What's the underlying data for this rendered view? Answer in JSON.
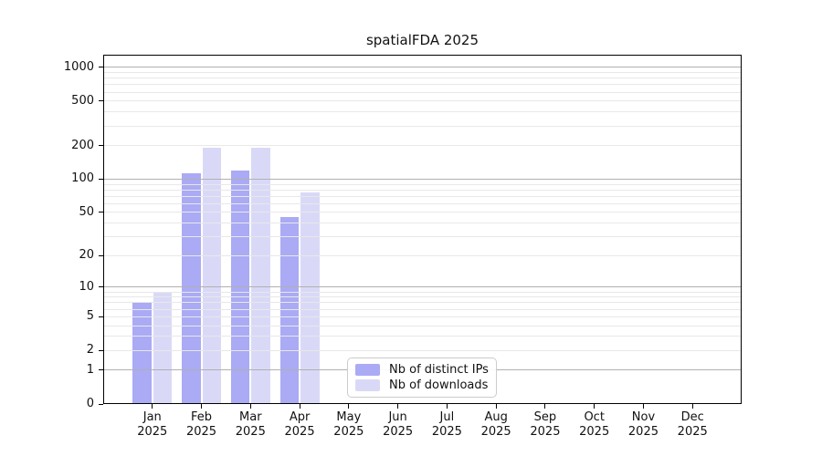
{
  "chart_data": {
    "type": "bar",
    "title": "spatialFDA 2025",
    "categories": [
      "Jan",
      "Feb",
      "Mar",
      "Apr",
      "May",
      "Jun",
      "Jul",
      "Aug",
      "Sep",
      "Oct",
      "Nov",
      "Dec"
    ],
    "year": "2025",
    "series": [
      {
        "name": "Nb of distinct IPs",
        "color": "#aaaaf5",
        "values": [
          7,
          112,
          120,
          45,
          0,
          0,
          0,
          0,
          0,
          0,
          0,
          0
        ]
      },
      {
        "name": "Nb of downloads",
        "color": "#d9d9f7",
        "values": [
          9,
          193,
          193,
          76,
          0,
          0,
          0,
          0,
          0,
          0,
          0,
          0
        ]
      }
    ],
    "y_scale": "log1p",
    "y_ticks": [
      0,
      1,
      2,
      5,
      10,
      20,
      50,
      100,
      200,
      500,
      1000
    ],
    "ylim": [
      0,
      1300
    ],
    "xlabel": "",
    "ylabel": "",
    "grid": true,
    "grid_major_color": "#b0b0b0",
    "grid_minor_color": "#e8e8e8",
    "legend_position": "lower center",
    "legend_labels": [
      "Nb of distinct IPs",
      "Nb of downloads"
    ]
  }
}
